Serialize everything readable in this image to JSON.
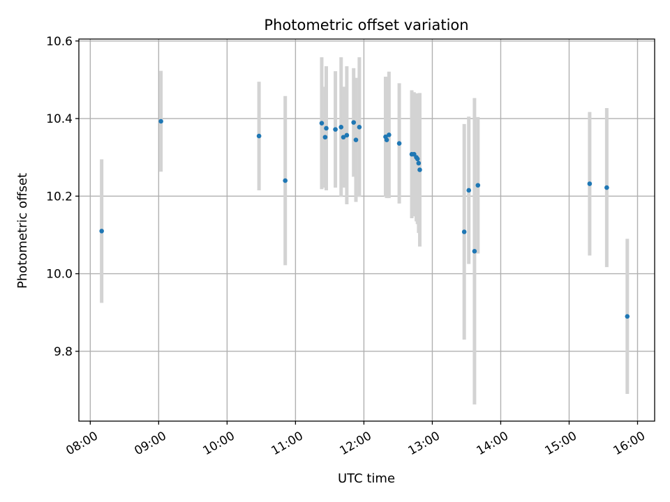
{
  "chart_data": {
    "type": "scatter",
    "title": "Photometric offset variation",
    "xlabel": "UTC time",
    "ylabel": "Photometric offset",
    "xlim": [
      "07:50",
      "16:15"
    ],
    "ylim": [
      9.62,
      10.605
    ],
    "x_ticks": [
      "08:00",
      "09:00",
      "10:00",
      "11:00",
      "12:00",
      "13:00",
      "14:00",
      "15:00",
      "16:00"
    ],
    "y_ticks": [
      9.8,
      10.0,
      10.2,
      10.4,
      10.6
    ],
    "y_tick_labels": [
      "9.8",
      "10.0",
      "10.2",
      "10.4",
      "10.6"
    ],
    "grid": true,
    "colors": {
      "points": "#1f77b4",
      "error_bars": "#d3d3d3"
    },
    "points": [
      {
        "x": "08:10",
        "y": 10.11,
        "err": 0.185
      },
      {
        "x": "09:02",
        "y": 10.393,
        "err": 0.13
      },
      {
        "x": "10:28",
        "y": 10.355,
        "err": 0.14
      },
      {
        "x": "10:51",
        "y": 10.24,
        "err": 0.218
      },
      {
        "x": "11:23",
        "y": 10.388,
        "err": 0.17
      },
      {
        "x": "11:26",
        "y": 10.352,
        "err": 0.13
      },
      {
        "x": "11:27",
        "y": 10.375,
        "err": 0.16
      },
      {
        "x": "11:35",
        "y": 10.372,
        "err": 0.15
      },
      {
        "x": "11:40",
        "y": 10.378,
        "err": 0.18
      },
      {
        "x": "11:42",
        "y": 10.352,
        "err": 0.13
      },
      {
        "x": "11:45",
        "y": 10.357,
        "err": 0.178
      },
      {
        "x": "11:51",
        "y": 10.39,
        "err": 0.14
      },
      {
        "x": "11:53",
        "y": 10.345,
        "err": 0.16
      },
      {
        "x": "11:56",
        "y": 10.378,
        "err": 0.18
      },
      {
        "x": "12:19",
        "y": 10.353,
        "err": 0.155
      },
      {
        "x": "12:20",
        "y": 10.345,
        "err": 0.15
      },
      {
        "x": "12:22",
        "y": 10.358,
        "err": 0.163
      },
      {
        "x": "12:31",
        "y": 10.336,
        "err": 0.155
      },
      {
        "x": "12:42",
        "y": 10.308,
        "err": 0.165
      },
      {
        "x": "12:44",
        "y": 10.308,
        "err": 0.16
      },
      {
        "x": "12:46",
        "y": 10.3,
        "err": 0.165
      },
      {
        "x": "12:47",
        "y": 10.296,
        "err": 0.168
      },
      {
        "x": "12:48",
        "y": 10.285,
        "err": 0.18
      },
      {
        "x": "12:49",
        "y": 10.268,
        "err": 0.198
      },
      {
        "x": "13:28",
        "y": 10.108,
        "err": 0.278
      },
      {
        "x": "13:32",
        "y": 10.215,
        "err": 0.19
      },
      {
        "x": "13:37",
        "y": 10.058,
        "err": 0.395
      },
      {
        "x": "13:40",
        "y": 10.228,
        "err": 0.176
      },
      {
        "x": "15:18",
        "y": 10.232,
        "err": 0.185
      },
      {
        "x": "15:33",
        "y": 10.222,
        "err": 0.205
      },
      {
        "x": "15:51",
        "y": 9.89,
        "err": 0.2
      }
    ]
  }
}
